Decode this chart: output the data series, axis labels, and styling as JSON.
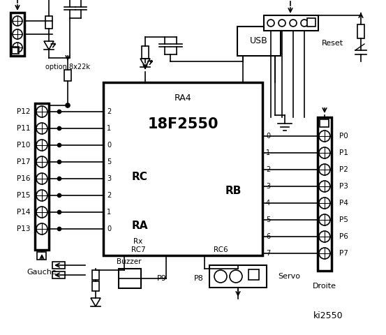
{
  "bg_color": "#ffffff",
  "title": "ki2550",
  "chip_label": "18F2550",
  "chip_ra4": "RA4",
  "chip_rc": "RC",
  "chip_ra": "RA",
  "chip_rb": "RB",
  "chip_rx": "Rx",
  "chip_rc7": "RC7",
  "chip_rc6": "RC6",
  "left_pins": [
    "P12",
    "P11",
    "P10",
    "P17",
    "P16",
    "P15",
    "P14",
    "P13"
  ],
  "left_rc_nums": [
    "2",
    "1",
    "0",
    "5",
    "3",
    "2",
    "1",
    "0"
  ],
  "right_pins": [
    "P0",
    "P1",
    "P2",
    "P3",
    "P4",
    "P5",
    "P6",
    "P7"
  ],
  "right_rb_nums": [
    "0",
    "1",
    "2",
    "3",
    "4",
    "5",
    "6",
    "7"
  ],
  "labels": {
    "option": "option 8x22k",
    "gauche": "Gauche",
    "droite": "Droite",
    "buzzer": "Buzzer",
    "p9": "P9",
    "p8": "P8",
    "servo": "Servo",
    "reset": "Reset",
    "usb": "USB"
  }
}
